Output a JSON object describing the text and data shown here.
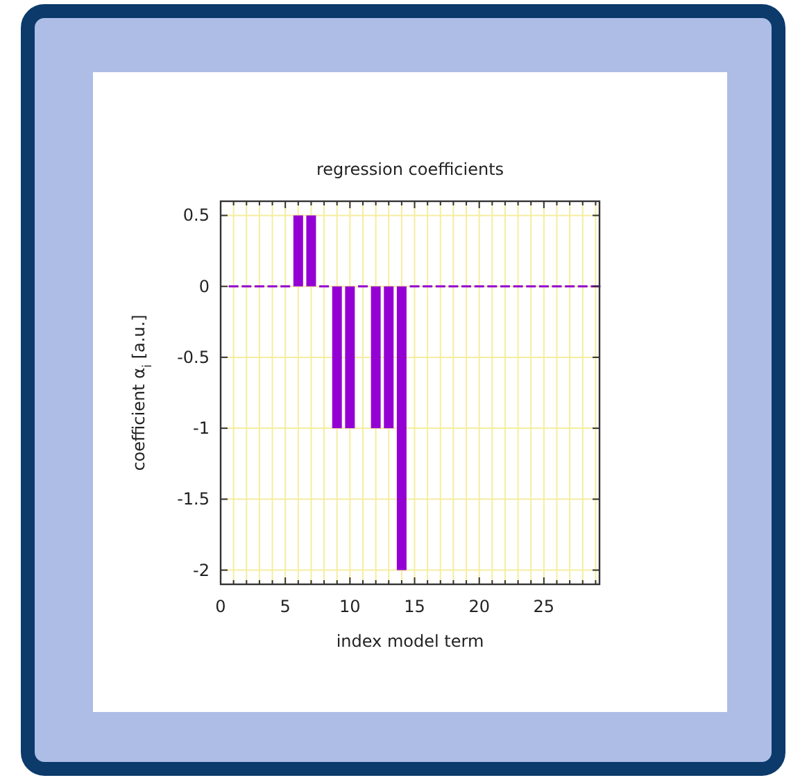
{
  "chart_data": {
    "type": "bar",
    "title": "regression coefficients",
    "xlabel": "index model term",
    "ylabel": "coefficient α$_{i}$ [a.u.]",
    "x": [
      1,
      2,
      3,
      4,
      5,
      6,
      7,
      8,
      9,
      10,
      11,
      12,
      13,
      14,
      15,
      16,
      17,
      18,
      19,
      20,
      21,
      22,
      23,
      24,
      25,
      26,
      27,
      28,
      29
    ],
    "values": [
      0,
      0,
      0,
      0,
      0,
      0.5,
      0.5,
      0,
      -1,
      -1,
      0,
      -1,
      -1,
      -2,
      0,
      0,
      0,
      0,
      0,
      0,
      0,
      0,
      0,
      0,
      0,
      0,
      0,
      0,
      0
    ],
    "color": "#9400d3",
    "xlim": [
      0,
      29.3
    ],
    "xticks": [
      0,
      {
        "value": 1,
        "label": null
      },
      {
        "value": 2,
        "label": null
      },
      {
        "value": 3,
        "label": null
      },
      {
        "value": 4,
        "label": null
      },
      5,
      {
        "value": 6,
        "label": null
      },
      {
        "value": 7,
        "label": null
      },
      {
        "value": 8,
        "label": null
      },
      {
        "value": 9,
        "label": null
      },
      10,
      {
        "value": 11,
        "label": null
      },
      {
        "value": 12,
        "label": null
      },
      {
        "value": 13,
        "label": null
      },
      {
        "value": 14,
        "label": null
      },
      15,
      {
        "value": 16,
        "label": null
      },
      {
        "value": 17,
        "label": null
      },
      {
        "value": 18,
        "label": null
      },
      {
        "value": 19,
        "label": null
      },
      20,
      {
        "value": 21,
        "label": null
      },
      {
        "value": 22,
        "label": null
      },
      {
        "value": 23,
        "label": null
      },
      {
        "value": 24,
        "label": null
      },
      25,
      {
        "value": 26,
        "label": null
      },
      {
        "value": 27,
        "label": null
      },
      {
        "value": 28,
        "label": null
      },
      {
        "value": 29,
        "label": null
      }
    ],
    "ylim": [
      -2.1,
      0.6
    ],
    "yticks": [
      {
        "value": 0.5,
        "label": "0.5"
      },
      0,
      {
        "value": -0.5,
        "label": "-0.5"
      },
      -1,
      {
        "value": -1.5,
        "label": "-1.5"
      },
      -2
    ],
    "grid": true
  }
}
